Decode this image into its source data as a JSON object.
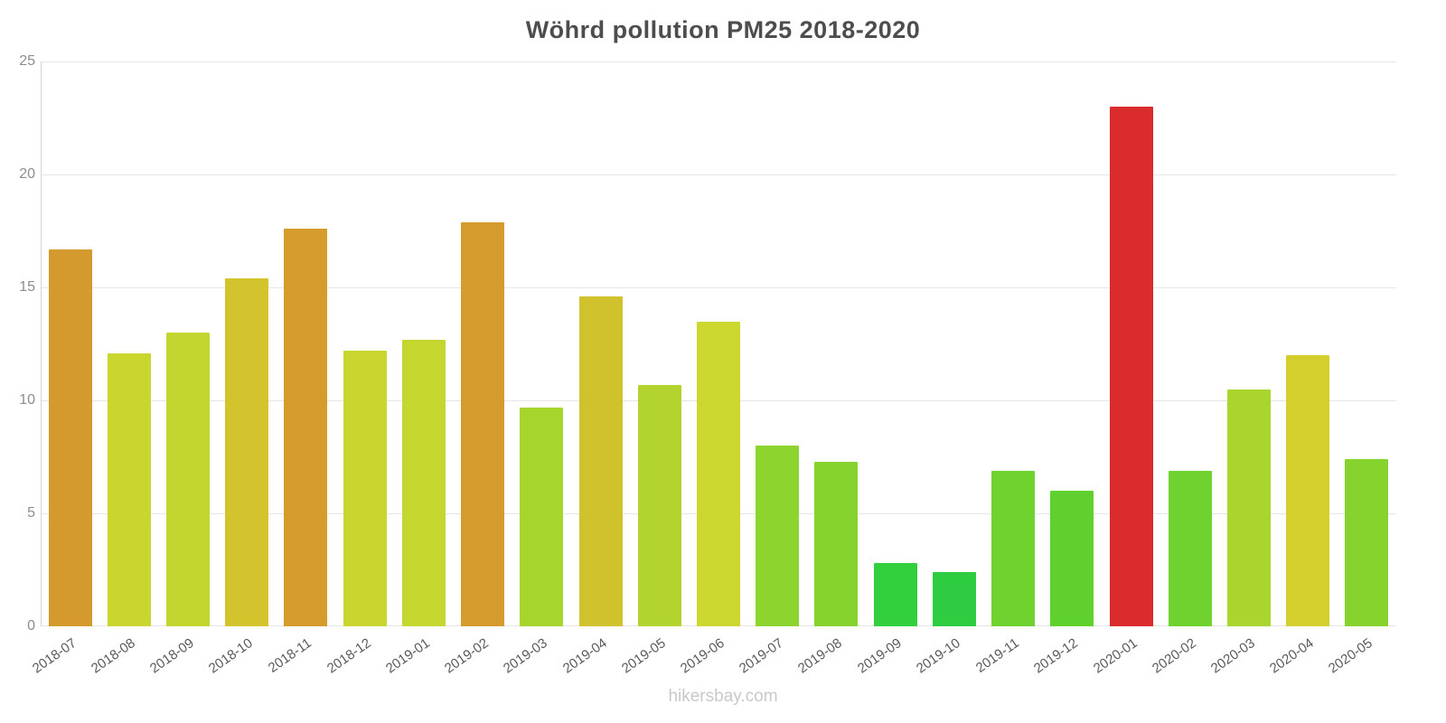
{
  "title": "Wöhrd pollution PM25 2018-2020",
  "footer": {
    "text": "hikersbay.com"
  },
  "colors": {
    "title": "#4d4d4d",
    "y_tick_label": "#8c8c8c",
    "x_label": "#595959",
    "gridline": "#e6e6e6",
    "axis": "#d4d4d4",
    "footer": "#c9c9c9",
    "background": "#ffffff"
  },
  "chart_data": {
    "type": "bar",
    "title": "Wöhrd pollution PM25 2018-2020",
    "xlabel": "",
    "ylabel": "",
    "ylim": [
      0,
      25
    ],
    "yticks": [
      0,
      5,
      10,
      15,
      20,
      25
    ],
    "grid": "horizontal",
    "legend": "none",
    "categories": [
      "2018-07",
      "2018-08",
      "2018-09",
      "2018-10",
      "2018-11",
      "2018-12",
      "2019-01",
      "2019-02",
      "2019-03",
      "2019-04",
      "2019-05",
      "2019-06",
      "2019-07",
      "2019-08",
      "2019-09",
      "2019-10",
      "2019-11",
      "2019-12",
      "2020-01",
      "2020-02",
      "2020-03",
      "2020-04",
      "2020-05"
    ],
    "values": [
      16.7,
      12.1,
      13.0,
      15.4,
      17.6,
      12.2,
      12.7,
      17.9,
      9.7,
      14.6,
      10.7,
      13.5,
      8.0,
      7.3,
      2.8,
      2.4,
      6.9,
      6.0,
      23.0,
      6.9,
      10.5,
      12.0,
      7.4
    ],
    "bar_colors": [
      "#d49a2e",
      "#c9d62f",
      "#c2d62f",
      "#d3c32c",
      "#d59c2d",
      "#c9d62f",
      "#c5d62f",
      "#d69b2d",
      "#a6d52e",
      "#d0c22c",
      "#b3d42e",
      "#ccd82f",
      "#8ed42e",
      "#86d32e",
      "#31d03c",
      "#2ecc40",
      "#70d22e",
      "#60d02e",
      "#da2c2c",
      "#70d22e",
      "#aad52e",
      "#d4cf2d",
      "#86d32e"
    ]
  }
}
